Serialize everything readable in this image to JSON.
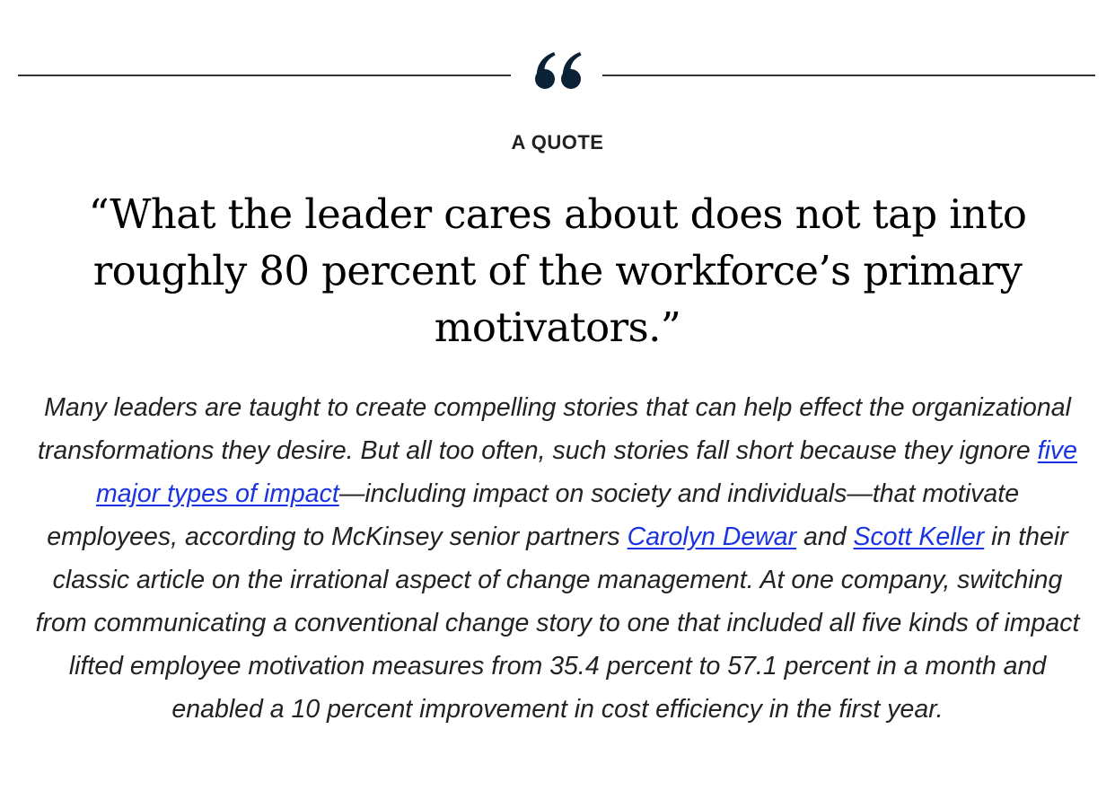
{
  "eyebrow": "A QUOTE",
  "quote_icon": "double-quote-icon",
  "colors": {
    "icon": "#0b2236",
    "link": "#1a33e0",
    "rule": "#333333"
  },
  "pull_quote": "“What the leader cares about does not tap into roughly 80 percent of the workforce’s primary motivators.”",
  "body": {
    "seg1": "Many leaders are taught to create compelling stories that can help effect the organizational transformations they desire. But all too often, such stories fall short because they ignore ",
    "link1": "five major types of impact",
    "seg2": "—including impact on society and individuals—that motivate employees, according to McKinsey senior partners ",
    "link2": "Carolyn Dewar",
    "seg3": " and ",
    "link3": "Scott Keller",
    "seg4": " in their classic article on the irrational aspect of change management. At one company, switching from communicating a conventional change story to one that included all five kinds of impact lifted employee motivation measures from 35.4 percent to 57.1 percent in a month and enabled a 10 percent improvement in cost efficiency in the first year."
  }
}
